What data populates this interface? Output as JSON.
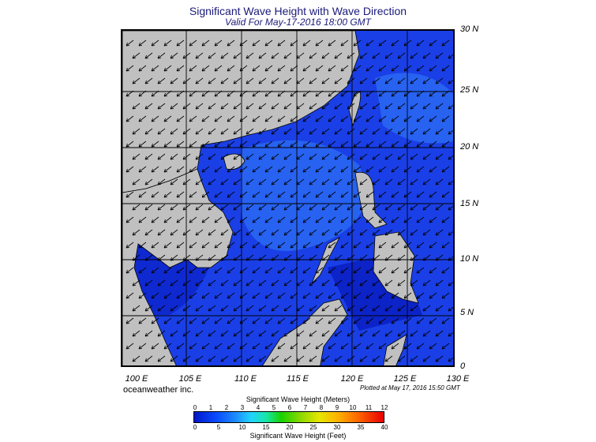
{
  "title": "Significant Wave Height with Wave Direction",
  "subtitle": "Valid For May-17-2016 18:00 GMT",
  "lat_labels": [
    "30 N",
    "25 N",
    "20 N",
    "15 N",
    "10 N",
    "5 N",
    "0"
  ],
  "lon_labels": [
    "100 E",
    "105 E",
    "110 E",
    "115 E",
    "120 E",
    "125 E",
    "130 E"
  ],
  "credit": "oceanweather inc.",
  "plotted": "Plotted at May 17, 2016 15:50 GMT",
  "colorbar": {
    "meters_title": "Significant Wave Height (Meters)",
    "feet_title": "Significant Wave Height (Feet)",
    "meters_ticks": [
      "0",
      "1",
      "2",
      "3",
      "4",
      "5",
      "6",
      "7",
      "8",
      "9",
      "10",
      "11",
      "12"
    ],
    "feet_ticks": [
      "0",
      "5",
      "10",
      "15",
      "20",
      "25",
      "30",
      "35",
      "40"
    ]
  },
  "colors": {
    "land": "#c0c0c0",
    "sea_low": "#0a1fd0",
    "sea_mid": "#1f5df0",
    "arrows": "#000000",
    "title": "#1a1a7a"
  }
}
